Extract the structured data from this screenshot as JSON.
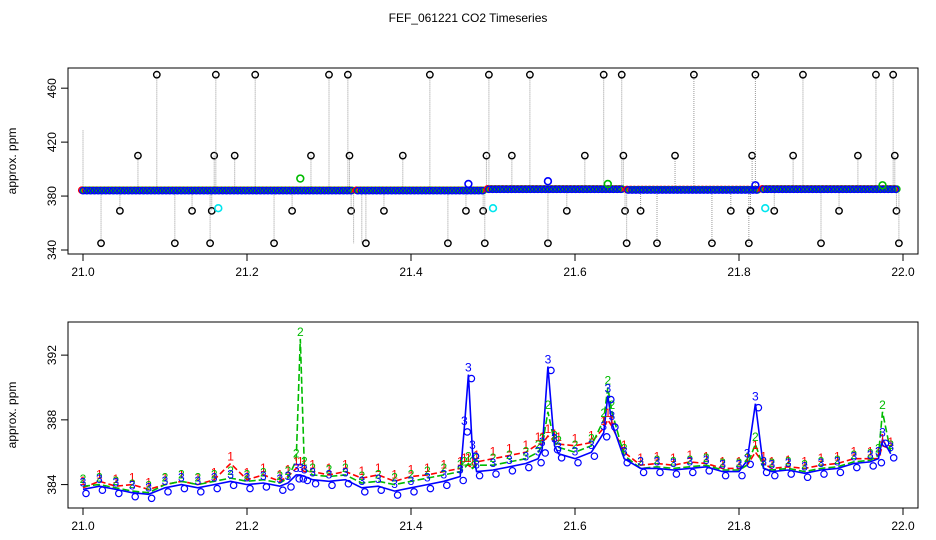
{
  "figure": {
    "title": "FEF_061221  CO2 Timeseries"
  },
  "colors": {
    "black": "#000000",
    "red": "#ff0000",
    "green": "#00bb00",
    "blue": "#0000ff",
    "cyan": "#00e5ee",
    "grey": "#9a9a9a"
  },
  "chart_data": [
    {
      "type": "scatter",
      "title": "",
      "xlabel": "",
      "ylabel": "approx. ppm",
      "xlim": [
        21.0,
        22.0
      ],
      "ylim": [
        340,
        472
      ],
      "x_ticks": [
        21.0,
        21.2,
        21.4,
        21.6,
        21.8,
        22.0
      ],
      "x_tick_labels": [
        "21.0",
        "21.2",
        "21.4",
        "21.6",
        "21.8",
        "22.0"
      ],
      "y_ticks": [
        340,
        380,
        420,
        460
      ],
      "y_tick_labels": [
        "340",
        "380",
        "420",
        "460"
      ],
      "grid": false,
      "legend": "none",
      "baseline_segments": [
        {
          "x0": 21.0,
          "x1": 21.33,
          "y": 384
        },
        {
          "x0": 21.335,
          "x1": 21.49,
          "y": 384
        },
        {
          "x0": 21.495,
          "x1": 21.66,
          "y": 385
        },
        {
          "x0": 21.665,
          "x1": 21.825,
          "y": 384.5
        },
        {
          "x0": 21.83,
          "x1": 21.995,
          "y": 385
        }
      ],
      "spikes": [
        {
          "x": 21.0,
          "y": 429,
          "marker": false
        },
        {
          "x": 21.022,
          "y": 345
        },
        {
          "x": 21.045,
          "y": 369
        },
        {
          "x": 21.067,
          "y": 410
        },
        {
          "x": 21.09,
          "y": 470
        },
        {
          "x": 21.112,
          "y": 345
        },
        {
          "x": 21.133,
          "y": 369
        },
        {
          "x": 21.155,
          "y": 345
        },
        {
          "x": 21.157,
          "y": 369
        },
        {
          "x": 21.16,
          "y": 410
        },
        {
          "x": 21.162,
          "y": 470
        },
        {
          "x": 21.185,
          "y": 410
        },
        {
          "x": 21.21,
          "y": 470
        },
        {
          "x": 21.233,
          "y": 345
        },
        {
          "x": 21.255,
          "y": 369
        },
        {
          "x": 21.278,
          "y": 410
        },
        {
          "x": 21.3,
          "y": 470
        },
        {
          "x": 21.323,
          "y": 470
        },
        {
          "x": 21.325,
          "y": 410
        },
        {
          "x": 21.327,
          "y": 369
        },
        {
          "x": 21.33,
          "y": 345,
          "marker": false
        },
        {
          "x": 21.34,
          "y": 345,
          "marker": false
        },
        {
          "x": 21.345,
          "y": 345
        },
        {
          "x": 21.367,
          "y": 369
        },
        {
          "x": 21.39,
          "y": 410
        },
        {
          "x": 21.423,
          "y": 470
        },
        {
          "x": 21.445,
          "y": 345
        },
        {
          "x": 21.467,
          "y": 369
        },
        {
          "x": 21.488,
          "y": 369
        },
        {
          "x": 21.49,
          "y": 345
        },
        {
          "x": 21.492,
          "y": 410
        },
        {
          "x": 21.495,
          "y": 470
        },
        {
          "x": 21.523,
          "y": 410
        },
        {
          "x": 21.545,
          "y": 470
        },
        {
          "x": 21.567,
          "y": 345
        },
        {
          "x": 21.59,
          "y": 369
        },
        {
          "x": 21.612,
          "y": 410
        },
        {
          "x": 21.635,
          "y": 470
        },
        {
          "x": 21.657,
          "y": 470
        },
        {
          "x": 21.659,
          "y": 410
        },
        {
          "x": 21.661,
          "y": 369
        },
        {
          "x": 21.663,
          "y": 345
        },
        {
          "x": 21.68,
          "y": 369
        },
        {
          "x": 21.7,
          "y": 345
        },
        {
          "x": 21.722,
          "y": 410
        },
        {
          "x": 21.745,
          "y": 470
        },
        {
          "x": 21.767,
          "y": 345
        },
        {
          "x": 21.79,
          "y": 369
        },
        {
          "x": 21.812,
          "y": 345
        },
        {
          "x": 21.814,
          "y": 369
        },
        {
          "x": 21.816,
          "y": 410
        },
        {
          "x": 21.82,
          "y": 470
        },
        {
          "x": 21.843,
          "y": 369
        },
        {
          "x": 21.866,
          "y": 410
        },
        {
          "x": 21.878,
          "y": 470
        },
        {
          "x": 21.9,
          "y": 345
        },
        {
          "x": 21.922,
          "y": 369
        },
        {
          "x": 21.945,
          "y": 410
        },
        {
          "x": 21.967,
          "y": 470
        },
        {
          "x": 21.988,
          "y": 470
        },
        {
          "x": 21.99,
          "y": 410
        },
        {
          "x": 21.992,
          "y": 369
        },
        {
          "x": 21.995,
          "y": 345
        }
      ],
      "special_points": [
        {
          "x": 21.265,
          "y": 393,
          "color": "green"
        },
        {
          "x": 21.47,
          "y": 389,
          "color": "blue"
        },
        {
          "x": 21.567,
          "y": 391,
          "color": "blue"
        },
        {
          "x": 21.64,
          "y": 389,
          "color": "green"
        },
        {
          "x": 21.82,
          "y": 388,
          "color": "blue"
        },
        {
          "x": 21.975,
          "y": 388,
          "color": "green"
        },
        {
          "x": 21.165,
          "y": 371,
          "color": "cyan"
        },
        {
          "x": 21.5,
          "y": 371,
          "color": "cyan"
        },
        {
          "x": 21.832,
          "y": 371,
          "color": "cyan"
        }
      ]
    },
    {
      "type": "line",
      "title": "",
      "xlabel": "",
      "ylabel": "approx. ppm",
      "xlim": [
        21.0,
        22.0
      ],
      "ylim": [
        382.8,
        393.8
      ],
      "x_ticks": [
        21.0,
        21.2,
        21.4,
        21.6,
        21.8,
        22.0
      ],
      "x_tick_labels": [
        "21.0",
        "21.2",
        "21.4",
        "21.6",
        "21.8",
        "22.0"
      ],
      "y_ticks": [
        384,
        388,
        392
      ],
      "y_tick_labels": [
        "384",
        "388",
        "392"
      ],
      "grid": false,
      "legend": "none",
      "x": [
        21.0,
        21.02,
        21.04,
        21.06,
        21.08,
        21.1,
        21.12,
        21.14,
        21.16,
        21.18,
        21.2,
        21.22,
        21.24,
        21.25,
        21.26,
        21.265,
        21.27,
        21.28,
        21.3,
        21.32,
        21.34,
        21.36,
        21.38,
        21.4,
        21.42,
        21.44,
        21.46,
        21.465,
        21.47,
        21.475,
        21.48,
        21.5,
        21.52,
        21.54,
        21.555,
        21.56,
        21.567,
        21.575,
        21.58,
        21.6,
        21.62,
        21.635,
        21.64,
        21.645,
        21.66,
        21.68,
        21.7,
        21.72,
        21.74,
        21.76,
        21.78,
        21.8,
        21.81,
        21.82,
        21.83,
        21.84,
        21.86,
        21.88,
        21.9,
        21.92,
        21.94,
        21.96,
        21.97,
        21.975,
        21.985
      ],
      "series": [
        {
          "name": "1",
          "color": "red",
          "values": [
            383.8,
            384.2,
            383.9,
            384.0,
            383.7,
            384.0,
            384.2,
            384.0,
            384.3,
            385.3,
            384.3,
            384.6,
            384.2,
            384.5,
            385.0,
            385.0,
            384.8,
            384.8,
            384.6,
            384.8,
            384.4,
            384.6,
            384.2,
            384.5,
            384.6,
            384.8,
            385.0,
            385.2,
            385.2,
            385.0,
            385.4,
            385.6,
            385.8,
            386.0,
            386.5,
            386.5,
            387.0,
            386.7,
            386.5,
            386.4,
            386.6,
            387.5,
            388.0,
            387.6,
            386.0,
            385.2,
            385.3,
            385.2,
            385.4,
            385.3,
            385.0,
            385.0,
            385.2,
            386.0,
            385.3,
            385.0,
            385.1,
            385.0,
            385.2,
            385.3,
            385.6,
            385.6,
            385.6,
            386.4,
            386.2
          ]
        },
        {
          "name": "2",
          "color": "green",
          "values": [
            383.9,
            384.0,
            383.8,
            383.6,
            383.5,
            384.0,
            384.2,
            384.0,
            384.2,
            384.4,
            384.2,
            384.3,
            384.1,
            384.4,
            385.5,
            393.0,
            385.0,
            384.6,
            384.5,
            384.6,
            384.1,
            384.2,
            384.0,
            384.2,
            384.4,
            384.6,
            384.8,
            385.0,
            385.3,
            385.0,
            385.2,
            385.2,
            385.4,
            385.6,
            386.0,
            386.4,
            388.5,
            386.6,
            386.3,
            386.0,
            386.4,
            388.0,
            390.0,
            388.5,
            385.8,
            385.0,
            385.1,
            385.0,
            385.1,
            385.2,
            384.9,
            384.9,
            385.2,
            386.5,
            385.0,
            384.9,
            385.0,
            384.8,
            385.0,
            385.1,
            385.4,
            385.5,
            385.8,
            388.5,
            386.0
          ]
        },
        {
          "name": "3",
          "color": "blue",
          "values": [
            383.7,
            383.9,
            383.7,
            383.5,
            383.4,
            383.8,
            384.0,
            383.8,
            384.0,
            384.2,
            384.0,
            384.1,
            383.9,
            384.1,
            384.6,
            384.6,
            384.5,
            384.3,
            384.2,
            384.3,
            383.8,
            383.9,
            383.6,
            383.8,
            384.0,
            384.2,
            384.5,
            387.5,
            390.8,
            386.0,
            384.8,
            384.9,
            385.1,
            385.3,
            385.6,
            386.2,
            391.3,
            386.4,
            385.9,
            385.6,
            386.0,
            387.2,
            389.5,
            387.8,
            385.6,
            385.0,
            385.0,
            384.9,
            385.0,
            385.1,
            384.8,
            384.8,
            385.5,
            389.0,
            385.0,
            384.8,
            384.9,
            384.7,
            384.9,
            385.0,
            385.3,
            385.4,
            385.6,
            386.8,
            385.9
          ]
        }
      ]
    }
  ]
}
